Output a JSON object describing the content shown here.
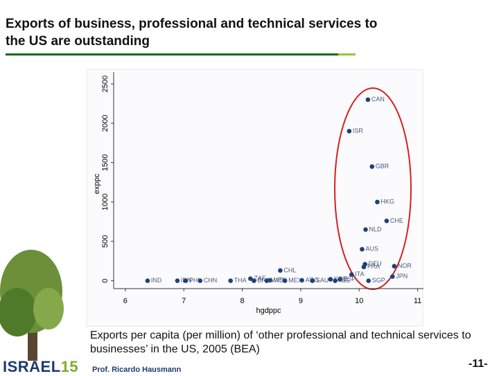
{
  "slide": {
    "title_lines": [
      "Exports of business, professional and technical services to",
      "the US are outstanding"
    ],
    "caption": "Exports per capita (per million) of ‘other professional and technical services to businesses’ in the US, 2005 (BEA)",
    "logo_word": "ISRAEL",
    "logo_number": "15",
    "author": "Prof. Ricardo Hausmann",
    "page_number": "-11-"
  },
  "chart_data": {
    "type": "scatter",
    "x_label": "hgdppc",
    "y_label": "exppc",
    "color": "#1f3f7a",
    "labels": [
      "CAN",
      "ISR",
      "GBR",
      "HKG",
      "CHE",
      "NLD",
      "AUS",
      "CHL",
      "DEU",
      "FRA",
      "NOR",
      "ITA",
      "JPN",
      "KOR",
      "ESP",
      "ZAF",
      "VEN",
      "ARG",
      "BRA",
      "MYS",
      "MEX",
      "SAU",
      "NZL",
      "SGP",
      "IND",
      "IDN",
      "PHL",
      "CHN",
      "THA"
    ],
    "x": [
      10.15,
      9.83,
      10.22,
      10.31,
      10.47,
      10.11,
      10.05,
      8.65,
      10.1,
      10.08,
      10.6,
      9.87,
      10.57,
      9.51,
      9.67,
      8.14,
      8.48,
      9.02,
      8.2,
      8.42,
      8.73,
      9.2,
      9.59,
      10.16,
      6.38,
      6.89,
      7.03,
      7.28,
      7.8
    ],
    "values": [
      2300,
      1900,
      1450,
      1000,
      760,
      650,
      400,
      130,
      210,
      175,
      185,
      79,
      53,
      18,
      18,
      26,
      5,
      5,
      0,
      0,
      0,
      0,
      0,
      0,
      0,
      0,
      0,
      0,
      0
    ],
    "xlim": [
      5.8,
      11.1
    ],
    "ylim": [
      -100,
      2650
    ],
    "xticks": [
      6,
      7,
      8,
      9,
      10,
      11
    ],
    "yticks": [
      0,
      500,
      1000,
      1500,
      2000,
      2500
    ]
  }
}
